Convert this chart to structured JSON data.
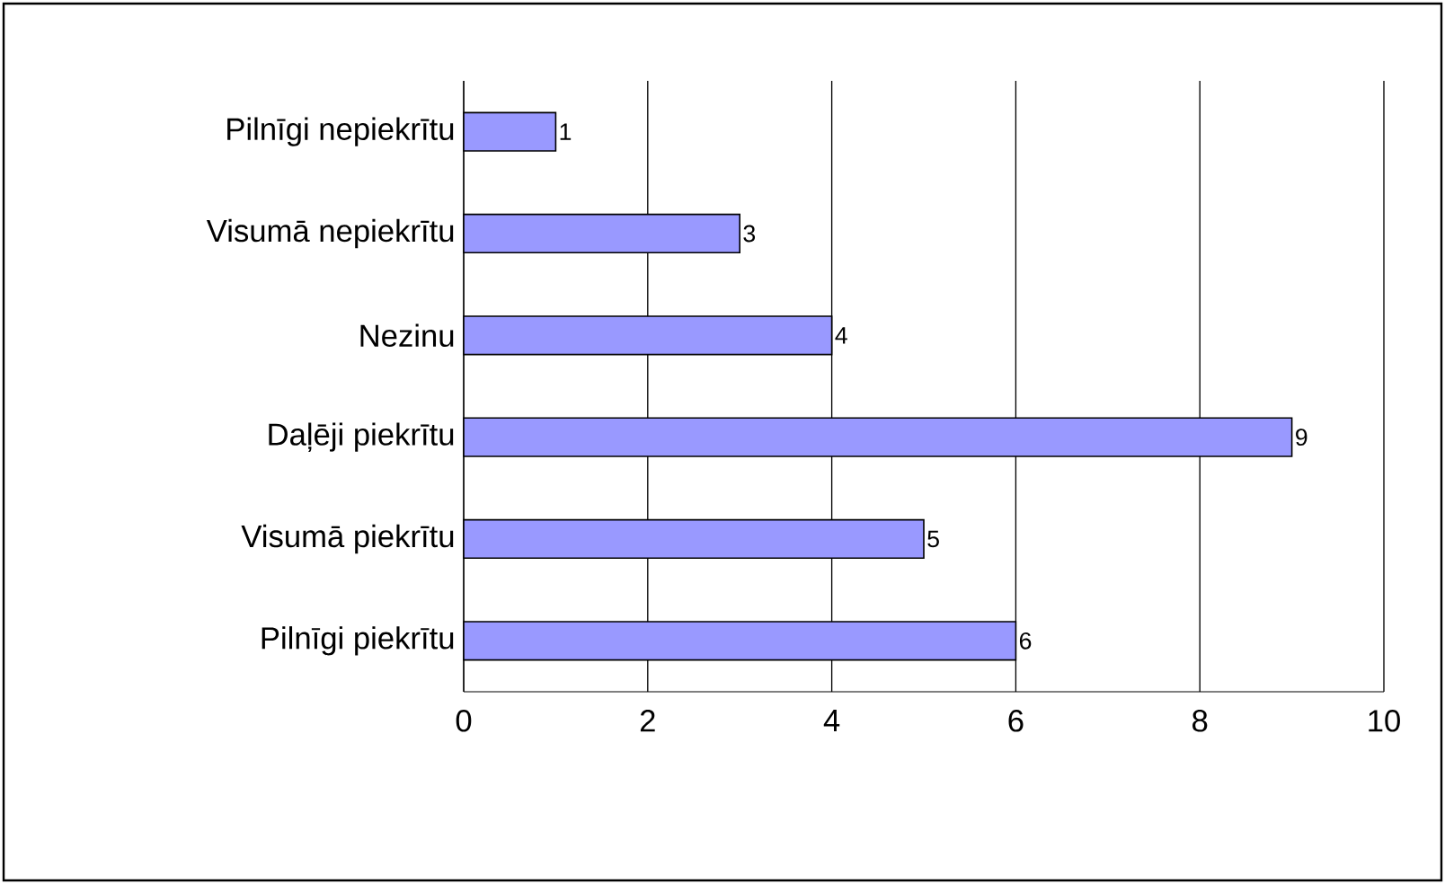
{
  "chart_data": {
    "type": "bar",
    "orientation": "horizontal",
    "categories": [
      "Pilnīgi nepiekrītu",
      "Visumā nepiekrītu",
      "Nezinu",
      "Daļēji piekrītu",
      "Visumā piekrītu",
      "Pilnīgi piekrītu"
    ],
    "values": [
      1,
      3,
      4,
      9,
      5,
      6
    ],
    "color": "#9999ff",
    "xlim": [
      0,
      10
    ],
    "xticks": [
      0,
      2,
      4,
      6,
      8,
      10
    ],
    "grid": "x",
    "data_labels": true
  }
}
